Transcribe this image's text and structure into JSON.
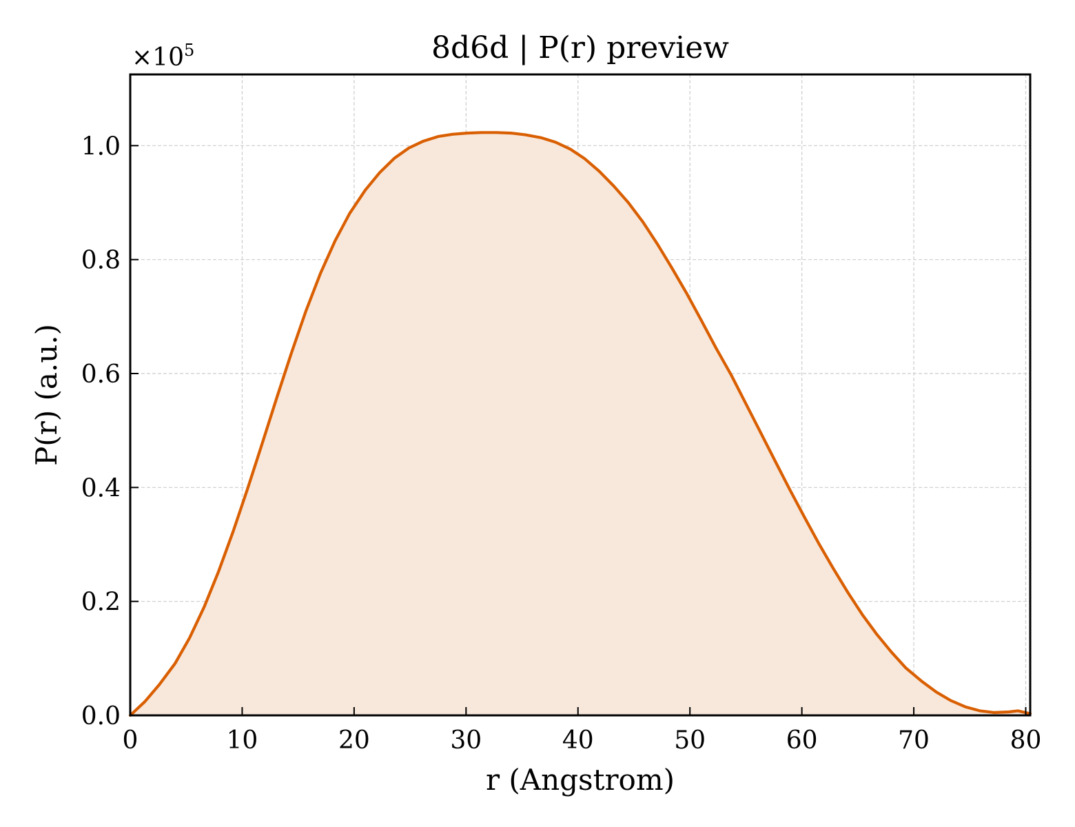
{
  "chart_data": {
    "type": "area",
    "title": "8d6d | P(r) preview",
    "xlabel": "r (Angstrom)",
    "ylabel": "P(r) (a.u.)",
    "y_scale_label": "×10",
    "y_scale_exponent": "5",
    "xlim": [
      0,
      80.4
    ],
    "ylim": [
      0,
      1.125
    ],
    "y_multiplier": 100000,
    "x_ticks": [
      0,
      10,
      20,
      30,
      40,
      50,
      60,
      70,
      80
    ],
    "y_ticks": [
      0.0,
      0.2,
      0.4,
      0.6,
      0.8,
      1.0
    ],
    "x_tick_labels": [
      "0",
      "10",
      "20",
      "30",
      "40",
      "50",
      "60",
      "70",
      "80"
    ],
    "y_tick_labels": [
      "0.0",
      "0.2",
      "0.4",
      "0.6",
      "0.8",
      "1.0"
    ],
    "grid": true,
    "line_color": "#d95f02",
    "fill_color": "#f8e8dc",
    "series": [
      {
        "x": [
          0,
          1.3,
          2.6,
          4.0,
          5.3,
          6.6,
          7.9,
          9.2,
          10.5,
          11.8,
          13.1,
          14.4,
          15.7,
          17.0,
          18.3,
          19.6,
          21.0,
          22.3,
          23.6,
          24.9,
          26.2,
          27.5,
          28.8,
          30.1,
          31.4,
          32.7,
          34.0,
          35.3,
          36.7,
          38.0,
          39.3,
          40.6,
          41.9,
          43.2,
          44.5,
          45.8,
          47.1,
          48.4,
          49.7,
          51.0,
          52.3,
          53.7,
          55.0,
          56.3,
          57.6,
          58.9,
          60.2,
          61.5,
          62.8,
          64.1,
          65.4,
          66.7,
          68.0,
          69.3,
          70.7,
          72.0,
          73.3,
          74.6,
          75.9,
          77.2,
          78.5,
          79.3,
          80.4
        ],
        "y": [
          0.0,
          0.024,
          0.054,
          0.091,
          0.136,
          0.19,
          0.253,
          0.323,
          0.399,
          0.478,
          0.558,
          0.636,
          0.71,
          0.776,
          0.833,
          0.881,
          0.922,
          0.953,
          0.978,
          0.996,
          1.008,
          1.016,
          1.02,
          1.022,
          1.023,
          1.023,
          1.022,
          1.019,
          1.014,
          1.006,
          0.994,
          0.977,
          0.955,
          0.929,
          0.9,
          0.866,
          0.827,
          0.785,
          0.741,
          0.694,
          0.646,
          0.597,
          0.547,
          0.497,
          0.447,
          0.397,
          0.349,
          0.302,
          0.258,
          0.216,
          0.177,
          0.142,
          0.111,
          0.083,
          0.06,
          0.041,
          0.026,
          0.015,
          0.008,
          0.005,
          0.006,
          0.008,
          0.003
        ]
      }
    ]
  }
}
